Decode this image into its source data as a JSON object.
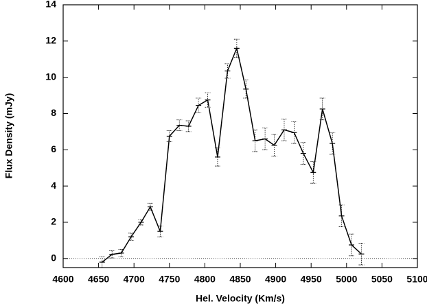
{
  "chart_data": {
    "type": "line",
    "x_label": "Hel. Velocity (Km/s)",
    "y_label": "Flux Density (mJy)",
    "x": [
      4655,
      4669,
      4682,
      4696,
      4710,
      4723,
      4737,
      4750,
      4764,
      4777,
      4791,
      4804,
      4818,
      4832,
      4845,
      4858,
      4871,
      4885,
      4898,
      4912,
      4926,
      4939,
      4953,
      4966,
      4980,
      4993,
      5007,
      5021
    ],
    "series": [
      {
        "color": "#000000",
        "values": [
          -0.2,
          0.23,
          0.3,
          1.2,
          2.0,
          2.85,
          1.5,
          6.75,
          7.35,
          7.3,
          8.45,
          8.75,
          5.6,
          10.35,
          11.6,
          9.35,
          6.5,
          6.6,
          6.25,
          7.1,
          6.95,
          5.8,
          4.75,
          8.25,
          6.35,
          2.35,
          0.75,
          0.25
        ],
        "errors": [
          0.3,
          0.2,
          0.2,
          0.2,
          0.15,
          0.2,
          0.3,
          0.3,
          0.3,
          0.3,
          0.4,
          0.4,
          0.5,
          0.4,
          0.5,
          0.5,
          0.6,
          0.6,
          0.6,
          0.6,
          0.6,
          0.6,
          0.6,
          0.6,
          0.6,
          0.6,
          0.6,
          0.6
        ]
      }
    ],
    "xlim": [
      4600,
      5100
    ],
    "xticks": [
      4600,
      4650,
      4700,
      4750,
      4800,
      4850,
      4900,
      4950,
      5000,
      5050,
      5100
    ],
    "ylim": [
      -0.5,
      14
    ],
    "yticks": [
      0,
      2,
      4,
      6,
      8,
      10,
      12,
      14
    ],
    "zero_line": true
  }
}
